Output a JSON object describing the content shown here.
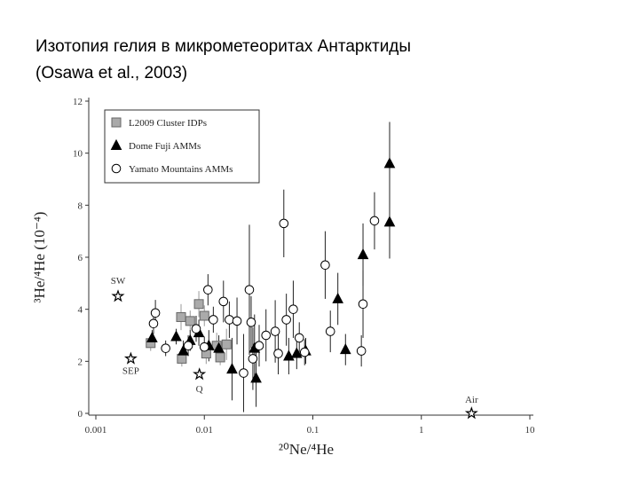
{
  "chart_data": {
    "type": "scatter",
    "title": [
      "Изотопия гелия в микрометеоритах Антарктиды",
      "(Osawa et al., 2003)"
    ],
    "x_label": "²⁰Ne/⁴He",
    "y_label": "³He/⁴He (10⁻⁴)",
    "xscale": "log",
    "xlim": [
      0.001,
      10
    ],
    "xticks": [
      0.001,
      0.01,
      0.1,
      1,
      10
    ],
    "ylim": [
      0,
      12
    ],
    "yticks": [
      0,
      2,
      4,
      6,
      8,
      10,
      12
    ],
    "grid": false,
    "legend": "upper-left",
    "series": [
      {
        "name": "L2009 Cluster IDPs",
        "marker": "square",
        "color": "#aaaaaa",
        "x": [
          0.0032,
          0.0061,
          0.0074,
          0.0089,
          0.01,
          0.0062,
          0.013,
          0.016,
          0.014,
          0.0104
        ],
        "y": [
          2.7,
          3.7,
          3.55,
          4.2,
          3.75,
          2.1,
          2.6,
          2.65,
          2.15,
          2.3
        ],
        "yerr": [
          0.3,
          0.5,
          0.4,
          0.5,
          0.4,
          0.3,
          0.5,
          0.6,
          0.3,
          0.4
        ]
      },
      {
        "name": "Dome Fuji AMMs",
        "marker": "triangle",
        "color": "#000000",
        "x": [
          0.0033,
          0.0055,
          0.0064,
          0.0074,
          0.0089,
          0.011,
          0.0136,
          0.018,
          0.029,
          0.03,
          0.06,
          0.071,
          0.17,
          0.2,
          0.29,
          0.51,
          0.51,
          0.086
        ],
        "y": [
          2.9,
          2.95,
          2.4,
          2.8,
          3.1,
          2.6,
          2.5,
          1.7,
          2.5,
          1.35,
          2.2,
          2.3,
          4.4,
          2.45,
          6.1,
          9.6,
          7.35,
          2.4
        ],
        "yerr": [
          0.3,
          0.3,
          0.4,
          0.4,
          0.5,
          0.6,
          0.5,
          1.2,
          1.3,
          1.1,
          0.7,
          0.6,
          1.0,
          0.6,
          1.2,
          1.6,
          1.4,
          0.5
        ]
      },
      {
        "name": "Yamato Mountains AMMs",
        "marker": "circle",
        "color": "#ffffff",
        "x": [
          0.00354,
          0.0034,
          0.0044,
          0.0071,
          0.0108,
          0.0121,
          0.015,
          0.017,
          0.02,
          0.026,
          0.027,
          0.023,
          0.028,
          0.032,
          0.037,
          0.045,
          0.048,
          0.054,
          0.057,
          0.066,
          0.075,
          0.084,
          0.13,
          0.145,
          0.29,
          0.28,
          0.37,
          0.01,
          0.0084
        ],
        "y": [
          3.86,
          3.45,
          2.5,
          2.6,
          4.75,
          3.6,
          4.3,
          3.6,
          3.55,
          4.75,
          3.5,
          1.55,
          2.1,
          2.6,
          3.0,
          3.15,
          2.3,
          7.3,
          3.6,
          4.0,
          2.9,
          2.35,
          5.7,
          3.15,
          4.2,
          2.4,
          7.4,
          2.55,
          3.25
        ],
        "yerr": [
          0.5,
          0.4,
          0.3,
          0.4,
          0.6,
          0.5,
          0.8,
          0.7,
          0.9,
          2.5,
          1.0,
          1.5,
          1.2,
          0.8,
          1.0,
          1.2,
          0.8,
          1.3,
          1.0,
          1.1,
          0.6,
          0.5,
          1.3,
          0.8,
          1.3,
          0.6,
          1.1,
          0.4,
          0.5
        ]
      }
    ],
    "annotations": [
      {
        "label": "SW",
        "x": 0.0016,
        "y": 4.5
      },
      {
        "label": "SEP",
        "x": 0.0021,
        "y": 2.1
      },
      {
        "label": "Q",
        "x": 0.009,
        "y": 1.5
      },
      {
        "label": "Air",
        "x": 2.9,
        "y": 0
      }
    ]
  }
}
